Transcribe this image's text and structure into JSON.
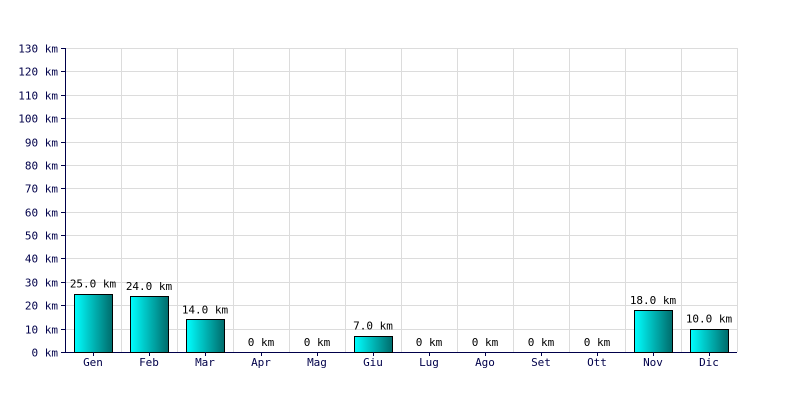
{
  "chart_data": {
    "type": "bar",
    "categories": [
      "Gen",
      "Feb",
      "Mar",
      "Apr",
      "Mag",
      "Giu",
      "Lug",
      "Ago",
      "Set",
      "Ott",
      "Nov",
      "Dic"
    ],
    "values": [
      25.0,
      24.0,
      14.0,
      0,
      0,
      7.0,
      0,
      0,
      0,
      0,
      18.0,
      10.0
    ],
    "data_labels": [
      "25.0 km",
      "24.0 km",
      "14.0 km",
      "0 km",
      "0 km",
      "7.0 km",
      "0 km",
      "0 km",
      "0 km",
      "0 km",
      "18.0 km",
      "10.0 km"
    ],
    "y_ticks": [
      0,
      10,
      20,
      30,
      40,
      50,
      60,
      70,
      80,
      90,
      100,
      110,
      120,
      130
    ],
    "y_tick_labels": [
      "0 km",
      "10 km",
      "20 km",
      "30 km",
      "40 km",
      "50 km",
      "60 km",
      "70 km",
      "80 km",
      "90 km",
      "100 km",
      "110 km",
      "120 km",
      "130 km"
    ],
    "ylim": [
      0,
      130
    ],
    "grid": true,
    "title": "",
    "xlabel": "",
    "ylabel": "",
    "colors": {
      "bar_light": "#00ffff",
      "bar_dark": "#006b6b",
      "bar_stroke": "#000000",
      "grid": "#dcdcdc",
      "axis": "#00004a",
      "tick_text": "#00004a"
    }
  }
}
